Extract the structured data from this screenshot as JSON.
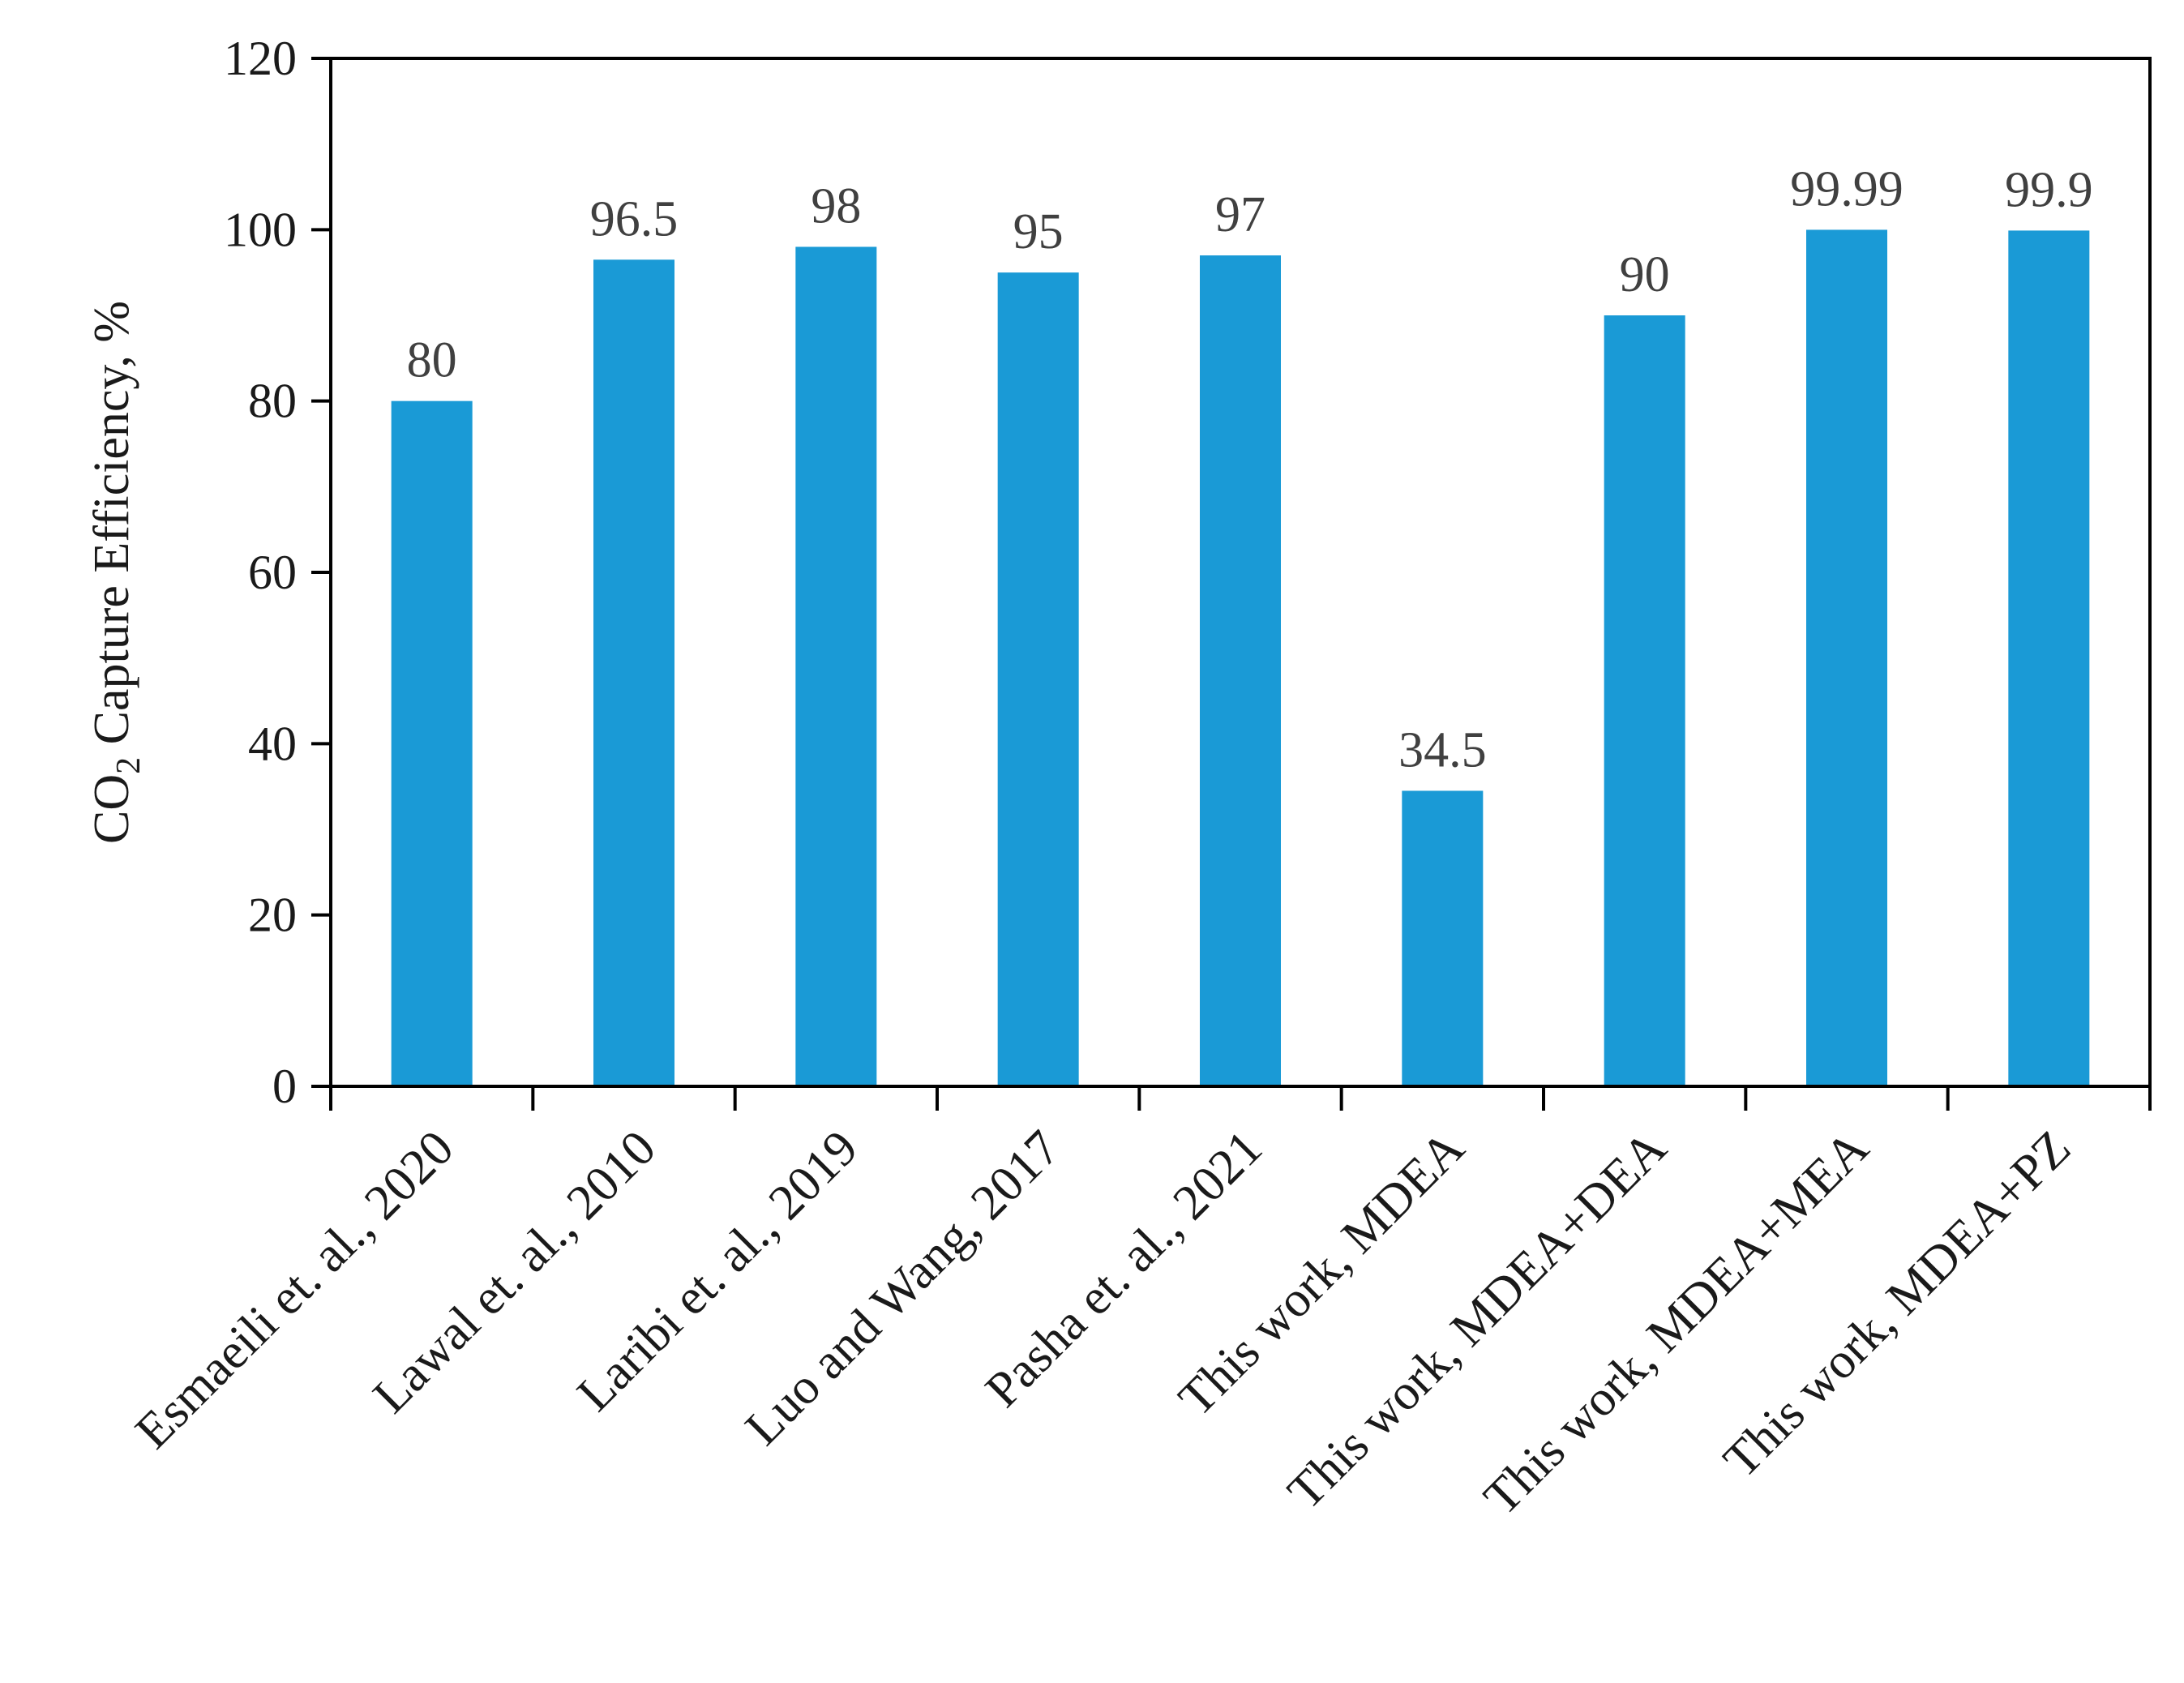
{
  "chart_data": {
    "type": "bar",
    "title": "",
    "xlabel": "",
    "ylabel": {
      "prefix": "CO",
      "subscript": "2",
      "suffix": " Capture Efficiency, %"
    },
    "ylim": [
      0,
      120
    ],
    "yticks": [
      0,
      20,
      40,
      60,
      80,
      100,
      120
    ],
    "grid": false,
    "legend": "none",
    "bar_color": "#1a9ad6",
    "categories": [
      "Esmaeili et. al., 2020",
      "Lawal et. al., 2010",
      "Laribi et. al., 2019",
      "Luo and Wang, 2017",
      "Pasha et. al., 2021",
      "This work, MDEA",
      "This work, MDEA+DEA",
      "This work, MDEA+MEA",
      "This work, MDEA+PZ"
    ],
    "values": [
      80,
      96.5,
      98,
      95,
      97,
      34.5,
      90,
      99.99,
      99.9
    ],
    "value_labels": [
      "80",
      "96.5",
      "98",
      "95",
      "97",
      "34.5",
      "90",
      "99.99",
      "99.9"
    ]
  }
}
